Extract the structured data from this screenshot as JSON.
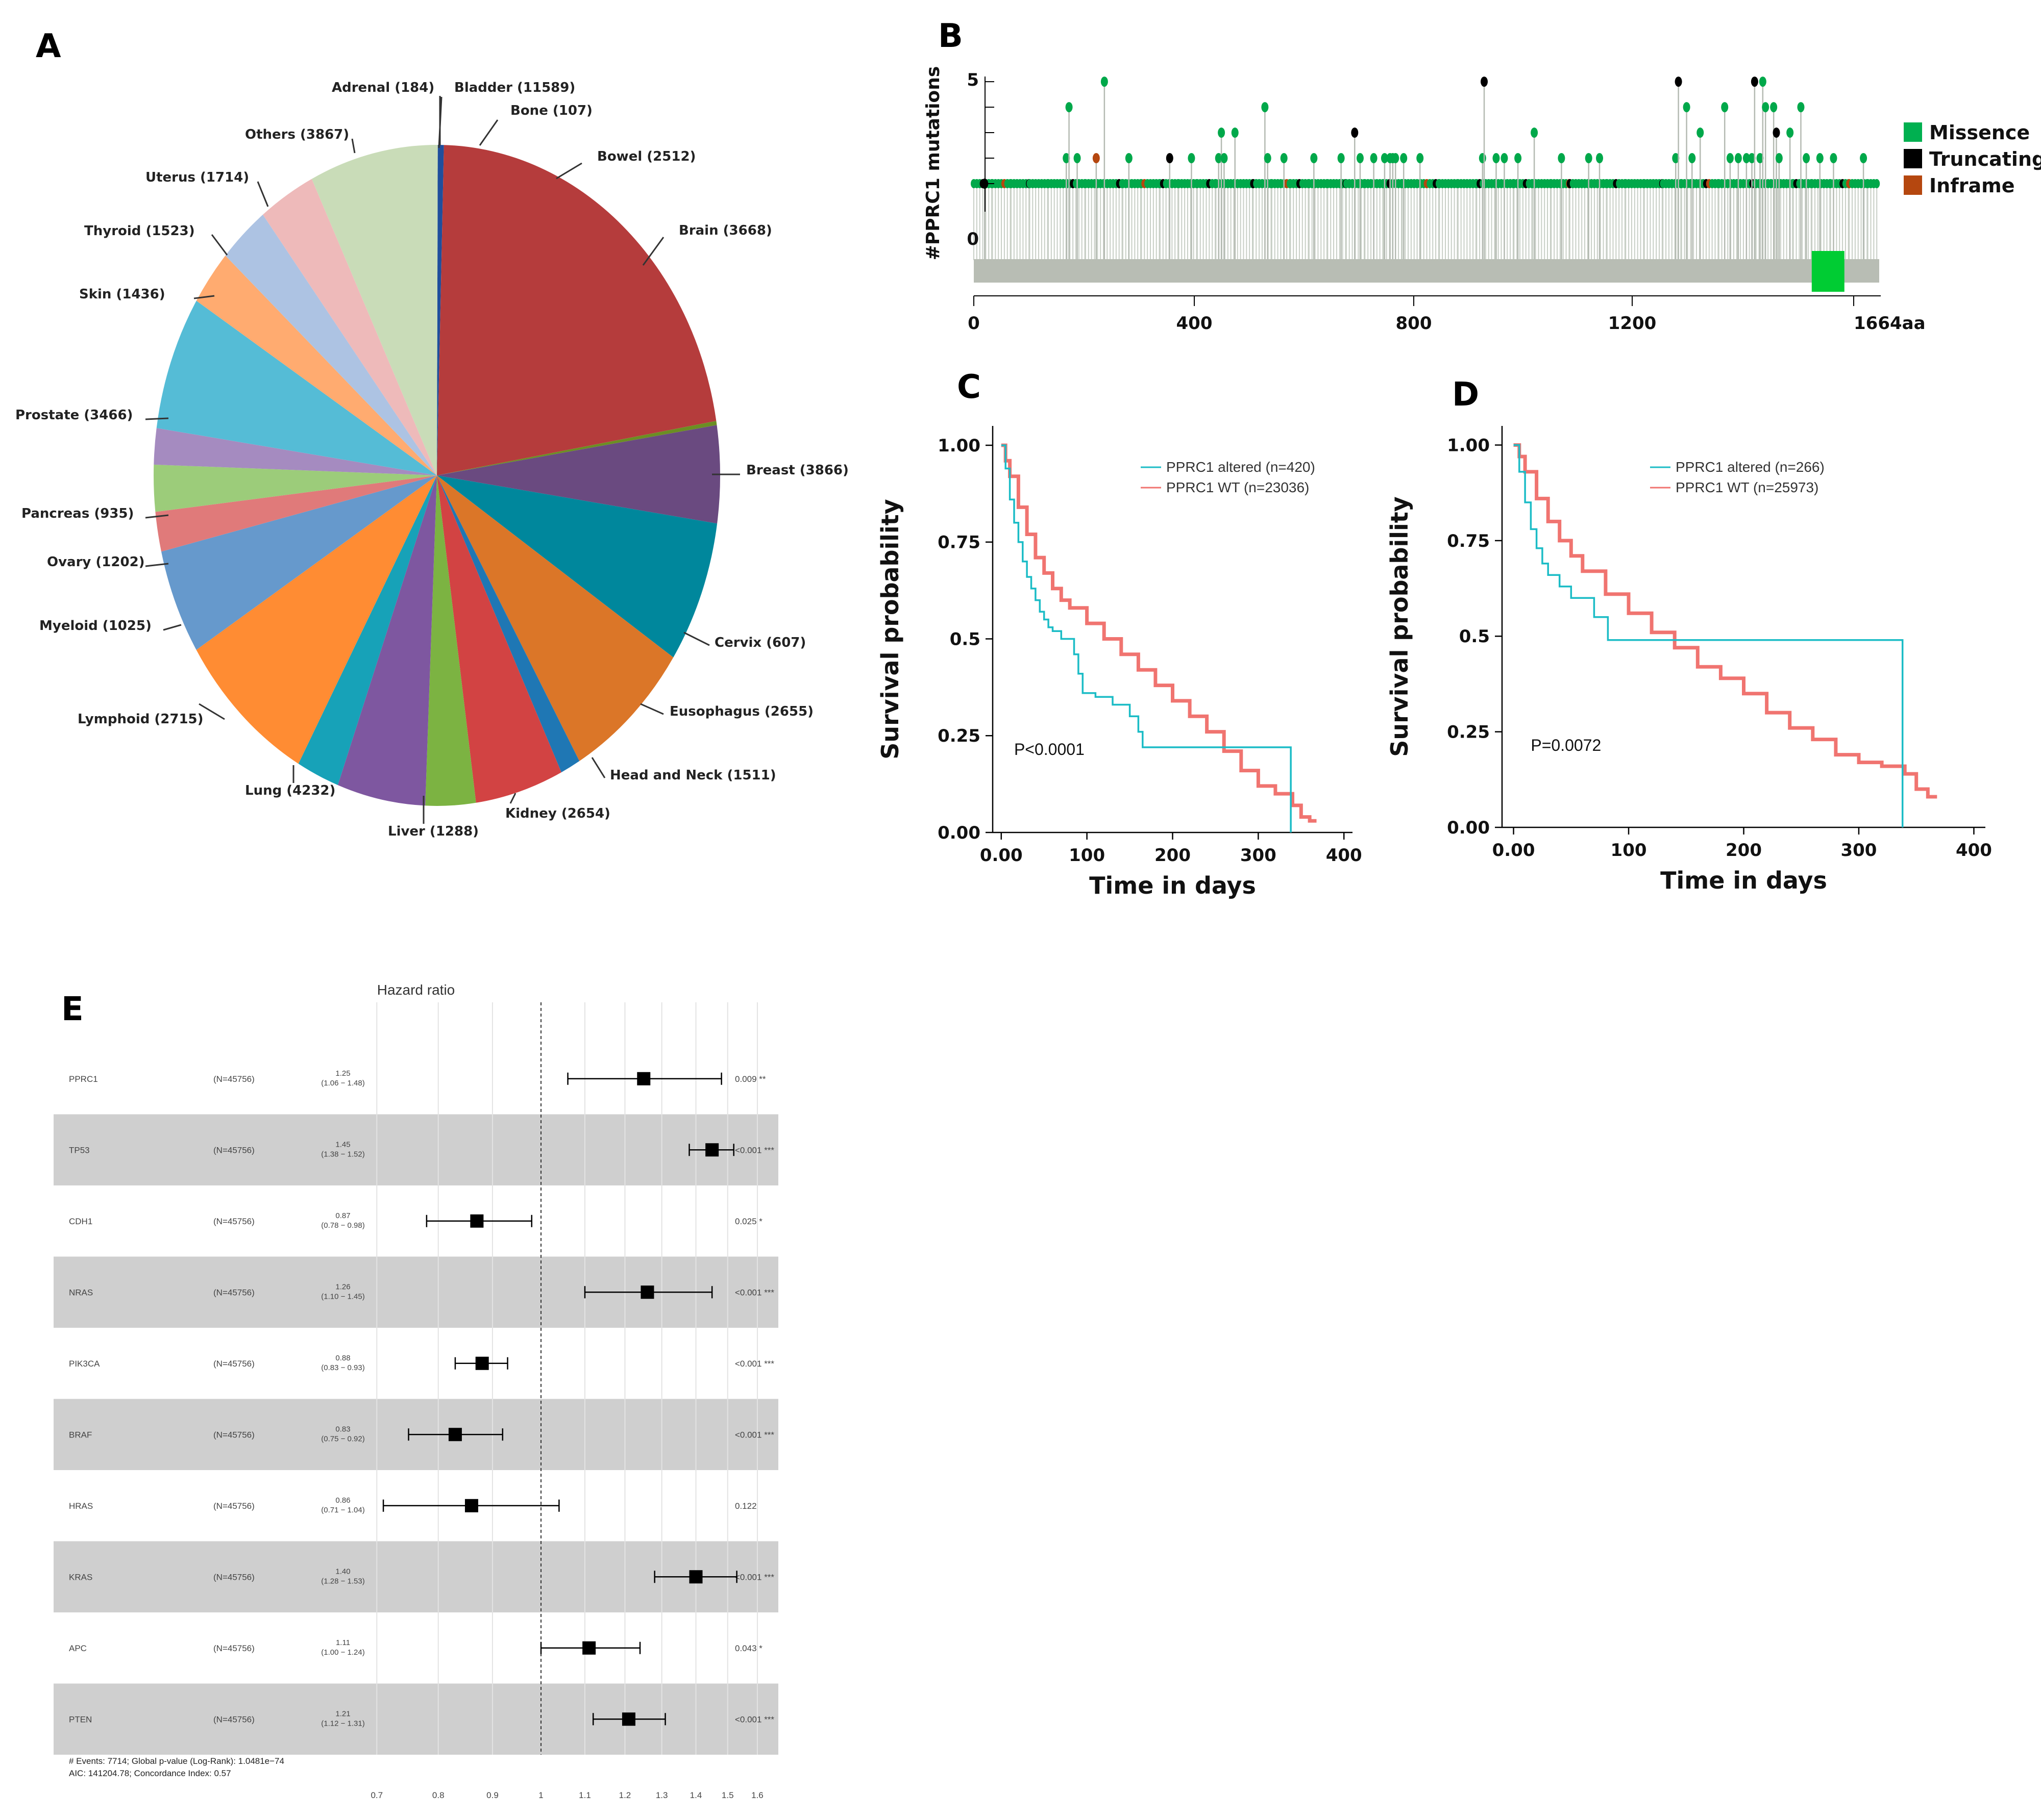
{
  "panels": {
    "a": "A",
    "b": "B",
    "c": "C",
    "d": "D",
    "e": "E"
  },
  "chart_data": [
    {
      "type": "pie",
      "panel": "A",
      "slices": [
        {
          "label": "Adrenal (184)",
          "value": 184,
          "color": "#1f4e9c"
        },
        {
          "label": "Bladder (11589)",
          "value": 11589,
          "color": "#b53c3c"
        },
        {
          "label": "Bone (107)",
          "value": 107,
          "color": "#6b8e23"
        },
        {
          "label": "Bowel (2512)",
          "value": 2512,
          "color": "#6a4a80"
        },
        {
          "label": "Brain (3668)",
          "value": 3668,
          "color": "#00879c"
        },
        {
          "label": "Breast (3866)",
          "value": 3866,
          "color": "#db7628"
        },
        {
          "label": "Cervix (607)",
          "value": 607,
          "color": "#1f77b4"
        },
        {
          "label": "Eusophagus (2655)",
          "value": 2655,
          "color": "#d24343"
        },
        {
          "label": "Head and Neck (1511)",
          "value": 1511,
          "color": "#7cb342"
        },
        {
          "label": "Kidney (2654)",
          "value": 2654,
          "color": "#7e57a0"
        },
        {
          "label": "Liver (1288)",
          "value": 1288,
          "color": "#17a2b8"
        },
        {
          "label": "Lung (4232)",
          "value": 4232,
          "color": "#ff8c33"
        },
        {
          "label": "Lymphoid (2715)",
          "value": 2715,
          "color": "#6699cc"
        },
        {
          "label": "Myeloid (1025)",
          "value": 1025,
          "color": "#e07a7a"
        },
        {
          "label": "Ovary (1202)",
          "value": 1202,
          "color": "#9ccc7a"
        },
        {
          "label": "Pancreas (935)",
          "value": 935,
          "color": "#a58bc0"
        },
        {
          "label": "Prostate (3466)",
          "value": 3466,
          "color": "#55bcd6"
        },
        {
          "label": "Skin (1436)",
          "value": 1436,
          "color": "#ffab70"
        },
        {
          "label": "Thyroid (1523)",
          "value": 1523,
          "color": "#adc3e3"
        },
        {
          "label": "Uterus (1714)",
          "value": 1714,
          "color": "#eebaba"
        },
        {
          "label": "Others (3867)",
          "value": 3867,
          "color": "#c9dcb8"
        }
      ]
    },
    {
      "type": "lollipop",
      "panel": "B",
      "ylabel": "#PPRC1 mutations",
      "y_ticks": [
        "5",
        "0"
      ],
      "ylim": [
        0,
        5
      ],
      "x_ticks": [
        "0",
        "400",
        "800",
        "1200",
        "1664aa"
      ],
      "xlim": [
        0,
        1664
      ],
      "domain": {
        "start": 1540,
        "end": 1600,
        "color": "#00cc33"
      },
      "legend": [
        {
          "label": "Missence",
          "color": "#00b050"
        },
        {
          "label": "Truncating",
          "color": "#000000"
        },
        {
          "label": "Inframe",
          "color": "#b5470f"
        }
      ],
      "tall_mutations": [
        {
          "pos": 20,
          "count": 1,
          "type": "Truncating"
        },
        {
          "pos": 170,
          "count": 2,
          "type": "Missence"
        },
        {
          "pos": 175,
          "count": 4,
          "type": "Missence"
        },
        {
          "pos": 190,
          "count": 2,
          "type": "Missence"
        },
        {
          "pos": 225,
          "count": 2,
          "type": "Inframe"
        },
        {
          "pos": 240,
          "count": 5,
          "type": "Missence"
        },
        {
          "pos": 285,
          "count": 2,
          "type": "Missence"
        },
        {
          "pos": 360,
          "count": 2,
          "type": "Truncating"
        },
        {
          "pos": 400,
          "count": 2,
          "type": "Missence"
        },
        {
          "pos": 450,
          "count": 2,
          "type": "Missence"
        },
        {
          "pos": 455,
          "count": 3,
          "type": "Missence"
        },
        {
          "pos": 460,
          "count": 2,
          "type": "Missence"
        },
        {
          "pos": 480,
          "count": 3,
          "type": "Missence"
        },
        {
          "pos": 535,
          "count": 4,
          "type": "Missence"
        },
        {
          "pos": 540,
          "count": 2,
          "type": "Missence"
        },
        {
          "pos": 570,
          "count": 2,
          "type": "Missence"
        },
        {
          "pos": 625,
          "count": 2,
          "type": "Missence"
        },
        {
          "pos": 675,
          "count": 2,
          "type": "Missence"
        },
        {
          "pos": 700,
          "count": 3,
          "type": "Truncating"
        },
        {
          "pos": 710,
          "count": 2,
          "type": "Missence"
        },
        {
          "pos": 735,
          "count": 2,
          "type": "Missence"
        },
        {
          "pos": 755,
          "count": 2,
          "type": "Missence"
        },
        {
          "pos": 765,
          "count": 2,
          "type": "Missence"
        },
        {
          "pos": 770,
          "count": 2,
          "type": "Missence"
        },
        {
          "pos": 775,
          "count": 2,
          "type": "Missence"
        },
        {
          "pos": 790,
          "count": 2,
          "type": "Missence"
        },
        {
          "pos": 820,
          "count": 2,
          "type": "Missence"
        },
        {
          "pos": 935,
          "count": 2,
          "type": "Missence"
        },
        {
          "pos": 938,
          "count": 5,
          "type": "Truncating"
        },
        {
          "pos": 960,
          "count": 2,
          "type": "Missence"
        },
        {
          "pos": 975,
          "count": 2,
          "type": "Missence"
        },
        {
          "pos": 1000,
          "count": 2,
          "type": "Missence"
        },
        {
          "pos": 1030,
          "count": 3,
          "type": "Missence"
        },
        {
          "pos": 1080,
          "count": 2,
          "type": "Missence"
        },
        {
          "pos": 1130,
          "count": 2,
          "type": "Missence"
        },
        {
          "pos": 1150,
          "count": 2,
          "type": "Missence"
        },
        {
          "pos": 1290,
          "count": 2,
          "type": "Missence"
        },
        {
          "pos": 1295,
          "count": 5,
          "type": "Truncating"
        },
        {
          "pos": 1310,
          "count": 4,
          "type": "Missence"
        },
        {
          "pos": 1320,
          "count": 2,
          "type": "Missence"
        },
        {
          "pos": 1335,
          "count": 3,
          "type": "Missence"
        },
        {
          "pos": 1380,
          "count": 4,
          "type": "Missence"
        },
        {
          "pos": 1390,
          "count": 2,
          "type": "Missence"
        },
        {
          "pos": 1405,
          "count": 2,
          "type": "Missence"
        },
        {
          "pos": 1420,
          "count": 2,
          "type": "Missence"
        },
        {
          "pos": 1430,
          "count": 2,
          "type": "Missence"
        },
        {
          "pos": 1435,
          "count": 5,
          "type": "Truncating"
        },
        {
          "pos": 1445,
          "count": 2,
          "type": "Missence"
        },
        {
          "pos": 1450,
          "count": 5,
          "type": "Missence"
        },
        {
          "pos": 1455,
          "count": 4,
          "type": "Missence"
        },
        {
          "pos": 1470,
          "count": 4,
          "type": "Missence"
        },
        {
          "pos": 1475,
          "count": 3,
          "type": "Truncating"
        },
        {
          "pos": 1480,
          "count": 2,
          "type": "Missence"
        },
        {
          "pos": 1500,
          "count": 3,
          "type": "Missence"
        },
        {
          "pos": 1520,
          "count": 4,
          "type": "Missence"
        },
        {
          "pos": 1530,
          "count": 2,
          "type": "Missence"
        },
        {
          "pos": 1555,
          "count": 2,
          "type": "Missence"
        },
        {
          "pos": 1580,
          "count": 2,
          "type": "Missence"
        },
        {
          "pos": 1635,
          "count": 2,
          "type": "Missence"
        }
      ]
    },
    {
      "type": "line",
      "panel": "C",
      "xlabel": "Time in days",
      "ylabel": "Survival probability",
      "x_ticks": [
        "0.00",
        "100",
        "200",
        "300",
        "400"
      ],
      "y_ticks": [
        "0.00",
        "0.25",
        "0.5",
        "0.75",
        "1.00"
      ],
      "xlim": [
        -10,
        410
      ],
      "ylim": [
        0,
        1.05
      ],
      "annotation": "P<0.0001",
      "series": [
        {
          "name": "PPRC1 altered (n=420)",
          "color": "#1bbcc6",
          "x": [
            0,
            5,
            10,
            15,
            20,
            25,
            30,
            35,
            40,
            45,
            50,
            55,
            60,
            70,
            80,
            85,
            90,
            95,
            110,
            120,
            130,
            140,
            150,
            160,
            165,
            170,
            200,
            250,
            300,
            335,
            338,
            338
          ],
          "y": [
            1.0,
            0.94,
            0.86,
            0.8,
            0.75,
            0.7,
            0.66,
            0.63,
            0.6,
            0.57,
            0.55,
            0.53,
            0.52,
            0.5,
            0.5,
            0.46,
            0.41,
            0.36,
            0.35,
            0.35,
            0.33,
            0.33,
            0.3,
            0.26,
            0.22,
            0.22,
            0.22,
            0.22,
            0.22,
            0.22,
            0.22,
            0.0
          ]
        },
        {
          "name": "PPRC1 WT (n=23036)",
          "color": "#f07470",
          "x": [
            0,
            5,
            10,
            20,
            30,
            40,
            50,
            60,
            70,
            80,
            100,
            120,
            140,
            160,
            180,
            200,
            220,
            240,
            260,
            280,
            300,
            320,
            340,
            350,
            360,
            368
          ],
          "y": [
            1.0,
            0.96,
            0.92,
            0.84,
            0.77,
            0.71,
            0.67,
            0.63,
            0.6,
            0.58,
            0.54,
            0.5,
            0.46,
            0.42,
            0.38,
            0.34,
            0.3,
            0.26,
            0.21,
            0.16,
            0.12,
            0.1,
            0.07,
            0.04,
            0.03,
            0.03
          ]
        }
      ]
    },
    {
      "type": "line",
      "panel": "D",
      "xlabel": "Time in days",
      "ylabel": "Survival probability",
      "x_ticks": [
        "0.00",
        "100",
        "200",
        "300",
        "400"
      ],
      "y_ticks": [
        "0.00",
        "0.25",
        "0.5",
        "0.75",
        "1.00"
      ],
      "xlim": [
        -10,
        410
      ],
      "ylim": [
        0,
        1.05
      ],
      "annotation": "P=0.0072",
      "series": [
        {
          "name": "PPRC1 altered (n=266)",
          "color": "#1bbcc6",
          "x": [
            0,
            5,
            10,
            15,
            20,
            25,
            30,
            40,
            50,
            60,
            70,
            80,
            82,
            120,
            200,
            300,
            338,
            338
          ],
          "y": [
            1.0,
            0.93,
            0.85,
            0.78,
            0.73,
            0.69,
            0.66,
            0.63,
            0.6,
            0.6,
            0.55,
            0.55,
            0.49,
            0.49,
            0.49,
            0.49,
            0.49,
            0.0
          ]
        },
        {
          "name": "PPRC1 WT (n=25973)",
          "color": "#f07470",
          "x": [
            0,
            5,
            10,
            20,
            30,
            40,
            50,
            60,
            80,
            100,
            120,
            140,
            160,
            180,
            200,
            220,
            240,
            260,
            280,
            300,
            320,
            340,
            350,
            360,
            368
          ],
          "y": [
            1.0,
            0.97,
            0.93,
            0.86,
            0.8,
            0.75,
            0.71,
            0.67,
            0.61,
            0.56,
            0.51,
            0.47,
            0.42,
            0.39,
            0.35,
            0.3,
            0.26,
            0.23,
            0.19,
            0.17,
            0.16,
            0.14,
            0.1,
            0.08,
            0.08
          ]
        }
      ]
    },
    {
      "type": "forest",
      "panel": "E",
      "title": "Hazard ratio",
      "x_ticks": [
        "0.7",
        "0.8",
        "0.9",
        "1",
        "1.1",
        "1.2",
        "1.3",
        "1.4",
        "1.5",
        "1.6"
      ],
      "footer": [
        "# Events: 7714; Global p-value (Log-Rank): 1.0481e−74",
        "AIC: 141204.78; Concordance Index: 0.57"
      ],
      "rows": [
        {
          "gene": "PPRC1",
          "n": "(N=45756)",
          "hr": "1.25",
          "ci": "(1.06 − 1.48)",
          "p": "0.009 **",
          "hr_val": 1.25,
          "lo": 1.06,
          "hi": 1.48
        },
        {
          "gene": "TP53",
          "n": "(N=45756)",
          "hr": "1.45",
          "ci": "(1.38 − 1.52)",
          "p": "<0.001 ***",
          "hr_val": 1.45,
          "lo": 1.38,
          "hi": 1.52
        },
        {
          "gene": "CDH1",
          "n": "(N=45756)",
          "hr": "0.87",
          "ci": "(0.78 − 0.98)",
          "p": "0.025 *",
          "hr_val": 0.87,
          "lo": 0.78,
          "hi": 0.98
        },
        {
          "gene": "NRAS",
          "n": "(N=45756)",
          "hr": "1.26",
          "ci": "(1.10 − 1.45)",
          "p": "<0.001 ***",
          "hr_val": 1.26,
          "lo": 1.1,
          "hi": 1.45
        },
        {
          "gene": "PIK3CA",
          "n": "(N=45756)",
          "hr": "0.88",
          "ci": "(0.83 − 0.93)",
          "p": "<0.001 ***",
          "hr_val": 0.88,
          "lo": 0.83,
          "hi": 0.93
        },
        {
          "gene": "BRAF",
          "n": "(N=45756)",
          "hr": "0.83",
          "ci": "(0.75 − 0.92)",
          "p": "<0.001 ***",
          "hr_val": 0.83,
          "lo": 0.75,
          "hi": 0.92
        },
        {
          "gene": "HRAS",
          "n": "(N=45756)",
          "hr": "0.86",
          "ci": "(0.71 − 1.04)",
          "p": "0.122",
          "hr_val": 0.86,
          "lo": 0.71,
          "hi": 1.04
        },
        {
          "gene": "KRAS",
          "n": "(N=45756)",
          "hr": "1.40",
          "ci": "(1.28 − 1.53)",
          "p": "<0.001 ***",
          "hr_val": 1.4,
          "lo": 1.28,
          "hi": 1.53
        },
        {
          "gene": "APC",
          "n": "(N=45756)",
          "hr": "1.11",
          "ci": "(1.00 − 1.24)",
          "p": "0.043 *",
          "hr_val": 1.11,
          "lo": 1.0,
          "hi": 1.24
        },
        {
          "gene": "PTEN",
          "n": "(N=45756)",
          "hr": "1.21",
          "ci": "(1.12 − 1.31)",
          "p": "<0.001 ***",
          "hr_val": 1.21,
          "lo": 1.12,
          "hi": 1.31
        }
      ]
    }
  ]
}
